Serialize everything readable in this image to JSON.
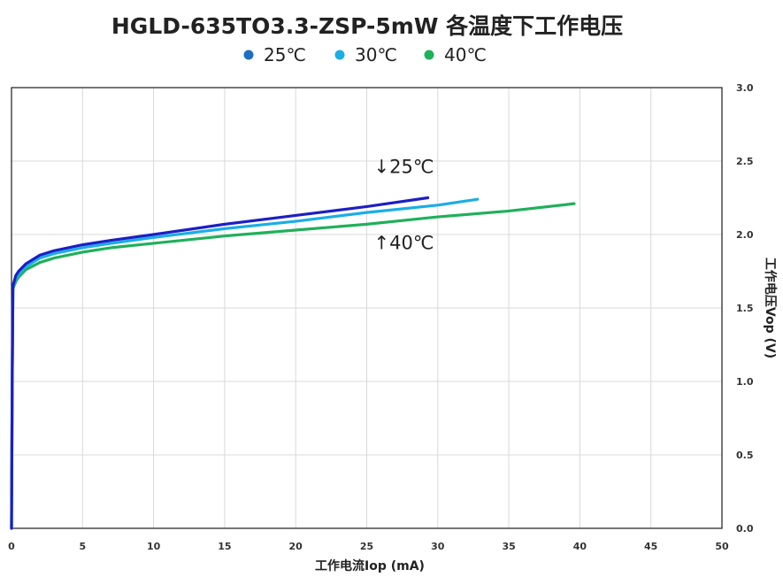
{
  "chart_data": {
    "type": "line",
    "title": "HGLD-635TO3.3-ZSP-5mW  各温度下工作电压",
    "xlabel": "工作电流Iop  (mA)",
    "ylabel": "工作电压Vop  (V)",
    "xlim": [
      0,
      50
    ],
    "ylim": [
      0,
      3.0
    ],
    "xticks": [
      "0",
      "5",
      "10",
      "15",
      "20",
      "25",
      "30",
      "35",
      "40",
      "45",
      "50"
    ],
    "yticks": [
      "0.0",
      "0.5",
      "1.0",
      "1.5",
      "2.0",
      "2.5",
      "3.0"
    ],
    "grid": true,
    "legend_position": "top",
    "series": [
      {
        "name": "25℃",
        "color": "#1c1fc4",
        "legend_color": "#1e6fc0",
        "x": [
          0,
          0.05,
          0.1,
          0.3,
          0.5,
          1,
          2,
          3,
          5,
          7,
          10,
          15,
          20,
          25,
          29.3
        ],
        "y": [
          0.0,
          1.0,
          1.65,
          1.72,
          1.75,
          1.8,
          1.86,
          1.89,
          1.93,
          1.96,
          2.0,
          2.07,
          2.13,
          2.19,
          2.25
        ]
      },
      {
        "name": "30℃",
        "color": "#19aee6",
        "legend_color": "#19aee6",
        "x": [
          0,
          0.05,
          0.1,
          0.3,
          0.5,
          1,
          2,
          3,
          5,
          7,
          10,
          15,
          20,
          25,
          30,
          32.8
        ],
        "y": [
          0.0,
          1.0,
          1.64,
          1.7,
          1.73,
          1.78,
          1.84,
          1.87,
          1.91,
          1.94,
          1.98,
          2.04,
          2.09,
          2.15,
          2.2,
          2.24
        ]
      },
      {
        "name": "40℃",
        "color": "#1fb05a",
        "legend_color": "#1fb05a",
        "x": [
          0,
          0.05,
          0.1,
          0.3,
          0.5,
          1,
          2,
          3,
          5,
          7,
          10,
          15,
          20,
          25,
          30,
          35,
          39.6
        ],
        "y": [
          0.0,
          1.0,
          1.63,
          1.68,
          1.71,
          1.76,
          1.81,
          1.84,
          1.88,
          1.91,
          1.94,
          1.99,
          2.03,
          2.07,
          2.12,
          2.16,
          2.21
        ]
      }
    ],
    "annotations": [
      {
        "text": "↓25℃",
        "x": 25.5,
        "y": 2.42
      },
      {
        "text": "↑40℃",
        "x": 25.5,
        "y": 1.9
      }
    ]
  }
}
